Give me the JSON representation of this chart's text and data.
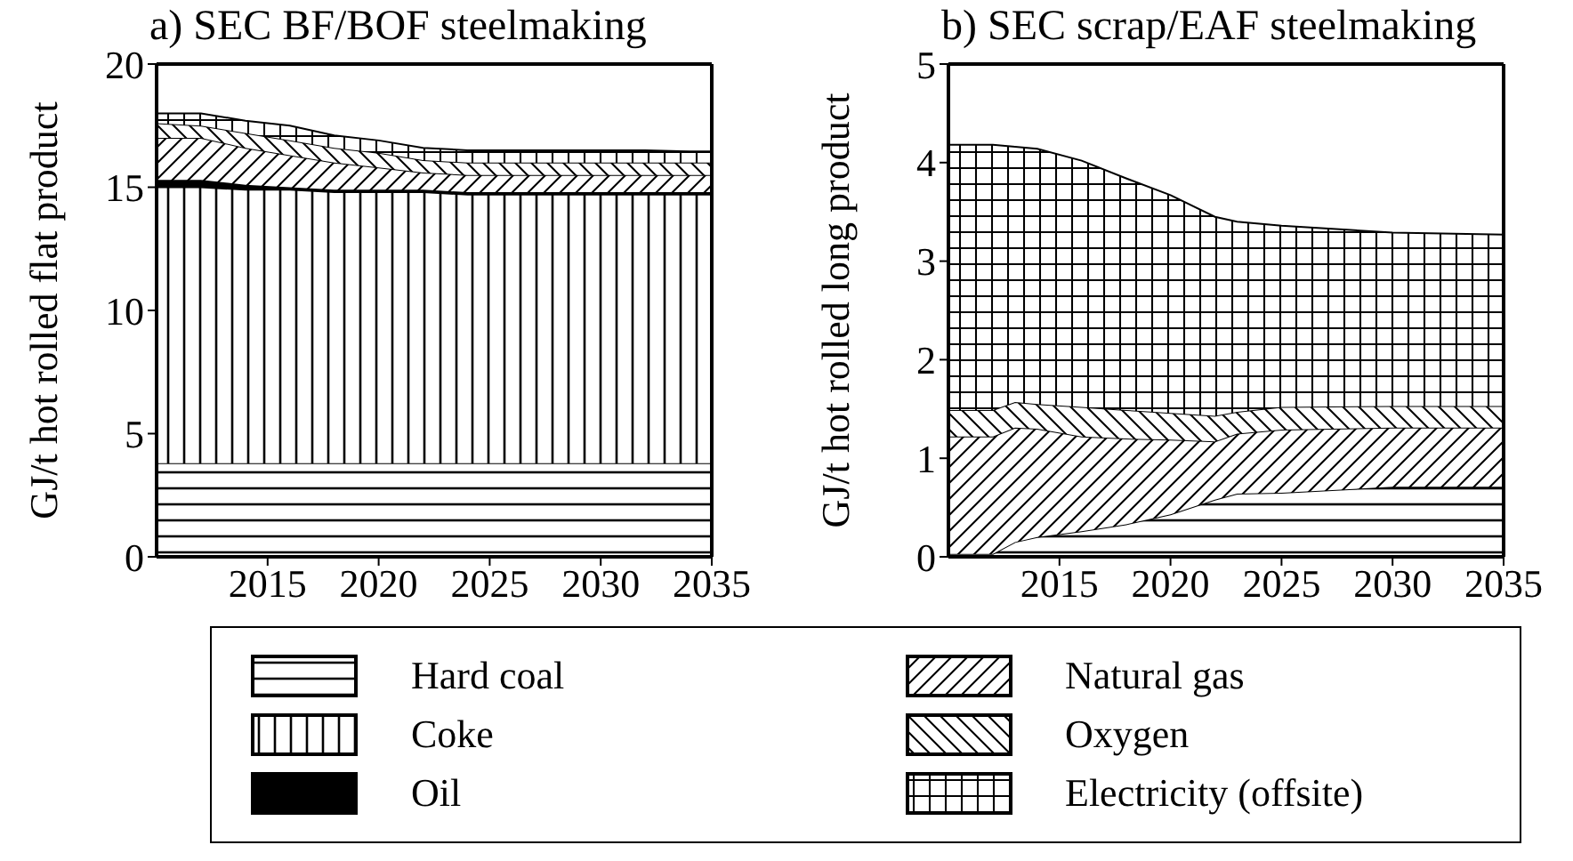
{
  "chart_data": [
    {
      "type": "area",
      "title": "a) SEC BF/BOF steelmaking",
      "ylabel": "GJ/t hot rolled flat product",
      "stacked": true,
      "legend": "bottom",
      "x": [
        2010,
        2012,
        2014,
        2016,
        2018,
        2020,
        2022,
        2024,
        2026,
        2028,
        2030,
        2032,
        2034,
        2035
      ],
      "xlim": [
        2010,
        2035
      ],
      "xticks": [
        2015,
        2020,
        2025,
        2030,
        2035
      ],
      "ylim": [
        0,
        20
      ],
      "yticks": [
        0,
        5,
        10,
        15,
        20
      ],
      "series": [
        {
          "name": "Hard coal",
          "color": "#000000",
          "values": [
            3.8,
            3.8,
            3.8,
            3.8,
            3.8,
            3.8,
            3.8,
            3.8,
            3.8,
            3.8,
            3.8,
            3.8,
            3.8,
            3.8
          ]
        },
        {
          "name": "Coke",
          "color": "#000000",
          "values": [
            11.2,
            11.2,
            11.1,
            11.1,
            11.0,
            11.0,
            11.0,
            10.9,
            10.9,
            10.9,
            10.9,
            10.9,
            10.9,
            10.9
          ]
        },
        {
          "name": "Oil",
          "color": "#000000",
          "values": [
            0.3,
            0.3,
            0.2,
            0.1,
            0.1,
            0.1,
            0.1,
            0.1,
            0.1,
            0.1,
            0.1,
            0.1,
            0.1,
            0.1
          ]
        },
        {
          "name": "Natural gas",
          "color": "#000000",
          "values": [
            1.7,
            1.7,
            1.5,
            1.3,
            1.1,
            0.9,
            0.7,
            0.7,
            0.7,
            0.7,
            0.7,
            0.7,
            0.7,
            0.7
          ]
        },
        {
          "name": "Oxygen",
          "color": "#000000",
          "values": [
            0.6,
            0.5,
            0.6,
            0.6,
            0.6,
            0.6,
            0.5,
            0.5,
            0.5,
            0.5,
            0.5,
            0.5,
            0.5,
            0.5
          ]
        },
        {
          "name": "Electricity (offsite)",
          "color": "#000000",
          "values": [
            0.4,
            0.5,
            0.5,
            0.6,
            0.5,
            0.5,
            0.5,
            0.5,
            0.5,
            0.5,
            0.5,
            0.5,
            0.45,
            0.45
          ]
        }
      ]
    },
    {
      "type": "area",
      "title": "b) SEC scrap/EAF steelmaking",
      "ylabel": "GJ/t hot rolled long product",
      "stacked": true,
      "x": [
        2010,
        2012,
        2013,
        2014,
        2016,
        2018,
        2020,
        2022,
        2023,
        2025,
        2030,
        2035
      ],
      "xlim": [
        2010,
        2035
      ],
      "xticks": [
        2015,
        2020,
        2025,
        2030,
        2035
      ],
      "ylim": [
        0,
        5
      ],
      "yticks": [
        0,
        1,
        2,
        3,
        4,
        5
      ],
      "series": [
        {
          "color": "#000000",
          "values": [
            0.03,
            0.03,
            0.15,
            0.2,
            0.26,
            0.33,
            0.43,
            0.58,
            0.64,
            0.65,
            0.71,
            0.71
          ]
        },
        {
          "color": "#000000",
          "values": [
            null,
            null,
            null,
            null,
            null,
            null,
            null,
            null,
            null,
            null,
            null,
            null
          ]
        },
        {
          "color": "#000000",
          "values": [
            null,
            null,
            null,
            null,
            null,
            null,
            null,
            null,
            null,
            null,
            null,
            null
          ]
        },
        {
          "color": "#000000",
          "values": [
            1.19,
            1.19,
            1.16,
            1.1,
            0.96,
            0.87,
            0.76,
            0.59,
            0.61,
            0.64,
            0.6,
            0.6
          ]
        },
        {
          "color": "#000000",
          "values": [
            0.27,
            0.27,
            0.26,
            0.25,
            0.3,
            0.29,
            0.27,
            0.26,
            0.22,
            0.23,
            0.22,
            0.22
          ]
        },
        {
          "color": "#000000",
          "values": [
            2.69,
            2.69,
            2.59,
            2.59,
            2.5,
            2.35,
            2.21,
            2.02,
            1.93,
            1.84,
            1.76,
            1.74
          ]
        }
      ]
    }
  ]
}
